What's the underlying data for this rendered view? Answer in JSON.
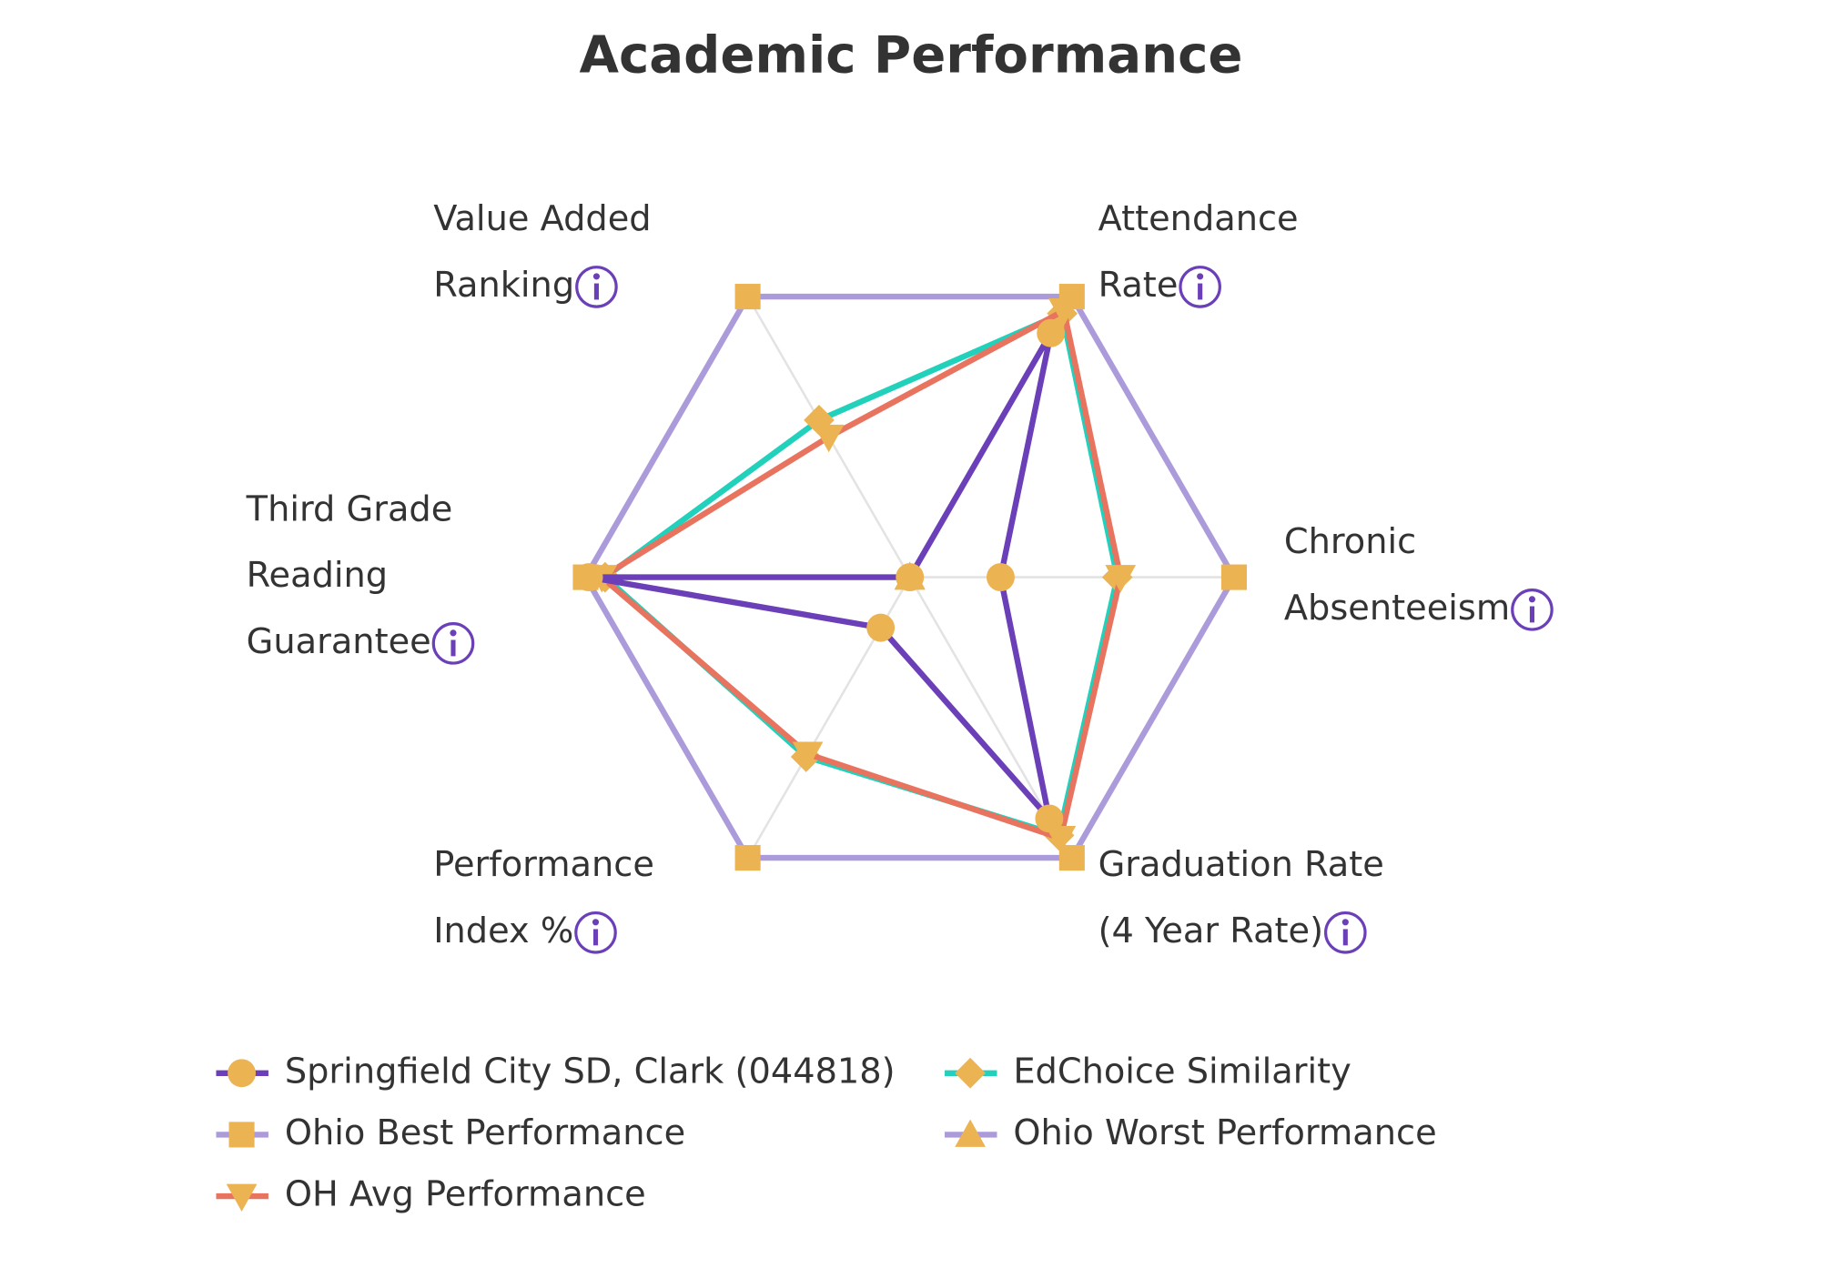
{
  "chart_data": {
    "type": "radar",
    "title": "Academic Performance",
    "categories": [
      [
        "Attendance",
        "Rate"
      ],
      [
        "Chronic",
        "Absenteeism"
      ],
      [
        "Graduation Rate",
        "(4 Year Rate)"
      ],
      [
        "Performance",
        "Index %"
      ],
      [
        "Third Grade",
        "Reading",
        "Guarantee"
      ],
      [
        "Value Added",
        "Ranking"
      ]
    ],
    "rlim": [
      0,
      100
    ],
    "marker_color": "#ebb352",
    "series": [
      {
        "name": "Springfield City SD, Clark (044818)",
        "color": "#6b3fb8",
        "marker": "circle",
        "values": [
          87,
          28,
          86,
          18,
          99,
          0
        ]
      },
      {
        "name": "EdChoice Similarity",
        "color": "#22d1bb",
        "marker": "diamond",
        "values": [
          94,
          64,
          92,
          64,
          94,
          56
        ]
      },
      {
        "name": "Ohio Best Performance",
        "color": "#ab9bda",
        "marker": "square",
        "values": [
          100,
          100,
          100,
          100,
          100,
          100
        ]
      },
      {
        "name": "Ohio Worst Performance",
        "color": "#ab9bda",
        "marker": "triangle-up",
        "values": [
          0,
          0,
          0,
          0,
          0,
          0
        ]
      },
      {
        "name": "OH Avg Performance",
        "color": "#e8735f",
        "marker": "triangle-down",
        "values": [
          95,
          65,
          93,
          63,
          95,
          50
        ]
      }
    ]
  }
}
